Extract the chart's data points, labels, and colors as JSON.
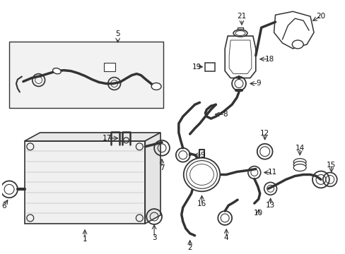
{
  "background_color": "#ffffff",
  "line_color": "#333333",
  "label_color": "#111111",
  "fig_width": 4.89,
  "fig_height": 3.6,
  "dpi": 100
}
